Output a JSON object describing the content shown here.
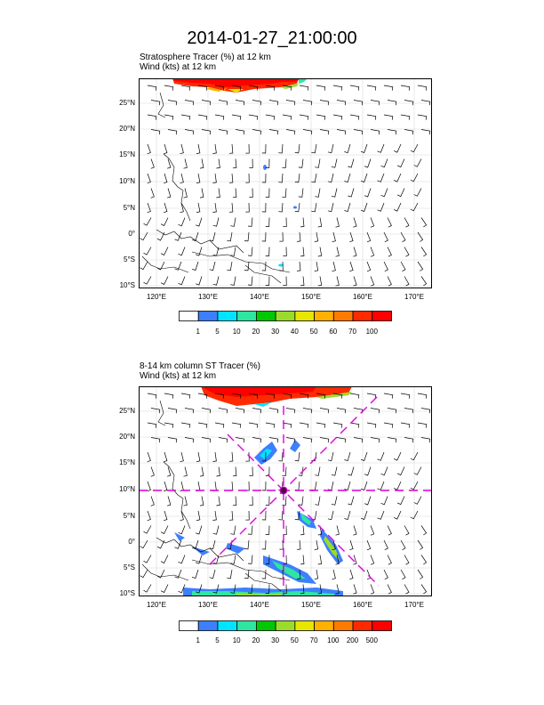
{
  "title": "2014-01-27_21:00:00",
  "panel1": {
    "line1": "Stratosphere Tracer   (%)     at   12 km",
    "line2": "Wind   (kts)     at   12 km",
    "colorbar_labels": [
      "1",
      "5",
      "10",
      "20",
      "30",
      "40",
      "50",
      "60",
      "70",
      "100"
    ],
    "colorbar_colors": [
      "#ffffff",
      "#3d7fff",
      "#00e5ff",
      "#2ee6a0",
      "#00c800",
      "#9bdc2a",
      "#e6e600",
      "#ffb000",
      "#ff7a00",
      "#ff2a00",
      "#ff0000"
    ]
  },
  "panel2": {
    "line1": "8-14 km column ST Tracer   (%)",
    "line2": "Wind   (kts)     at   12 km",
    "colorbar_labels": [
      "1",
      "5",
      "10",
      "20",
      "30",
      "50",
      "70",
      "100",
      "200",
      "500"
    ],
    "colorbar_colors": [
      "#ffffff",
      "#3d7fff",
      "#00e5ff",
      "#2ee6a0",
      "#00c800",
      "#9bdc2a",
      "#e6e600",
      "#ffb000",
      "#ff7a00",
      "#ff2a00",
      "#ff0000"
    ]
  },
  "axes": {
    "lat_labels": [
      "25°N",
      "20°N",
      "15°N",
      "10°N",
      "5°N",
      "0°",
      "5°S",
      "10°S"
    ],
    "lon_labels": [
      "120°E",
      "130°E",
      "140°E",
      "150°E",
      "160°E",
      "170°E"
    ]
  },
  "colors": {
    "marker": "#e000e0"
  }
}
